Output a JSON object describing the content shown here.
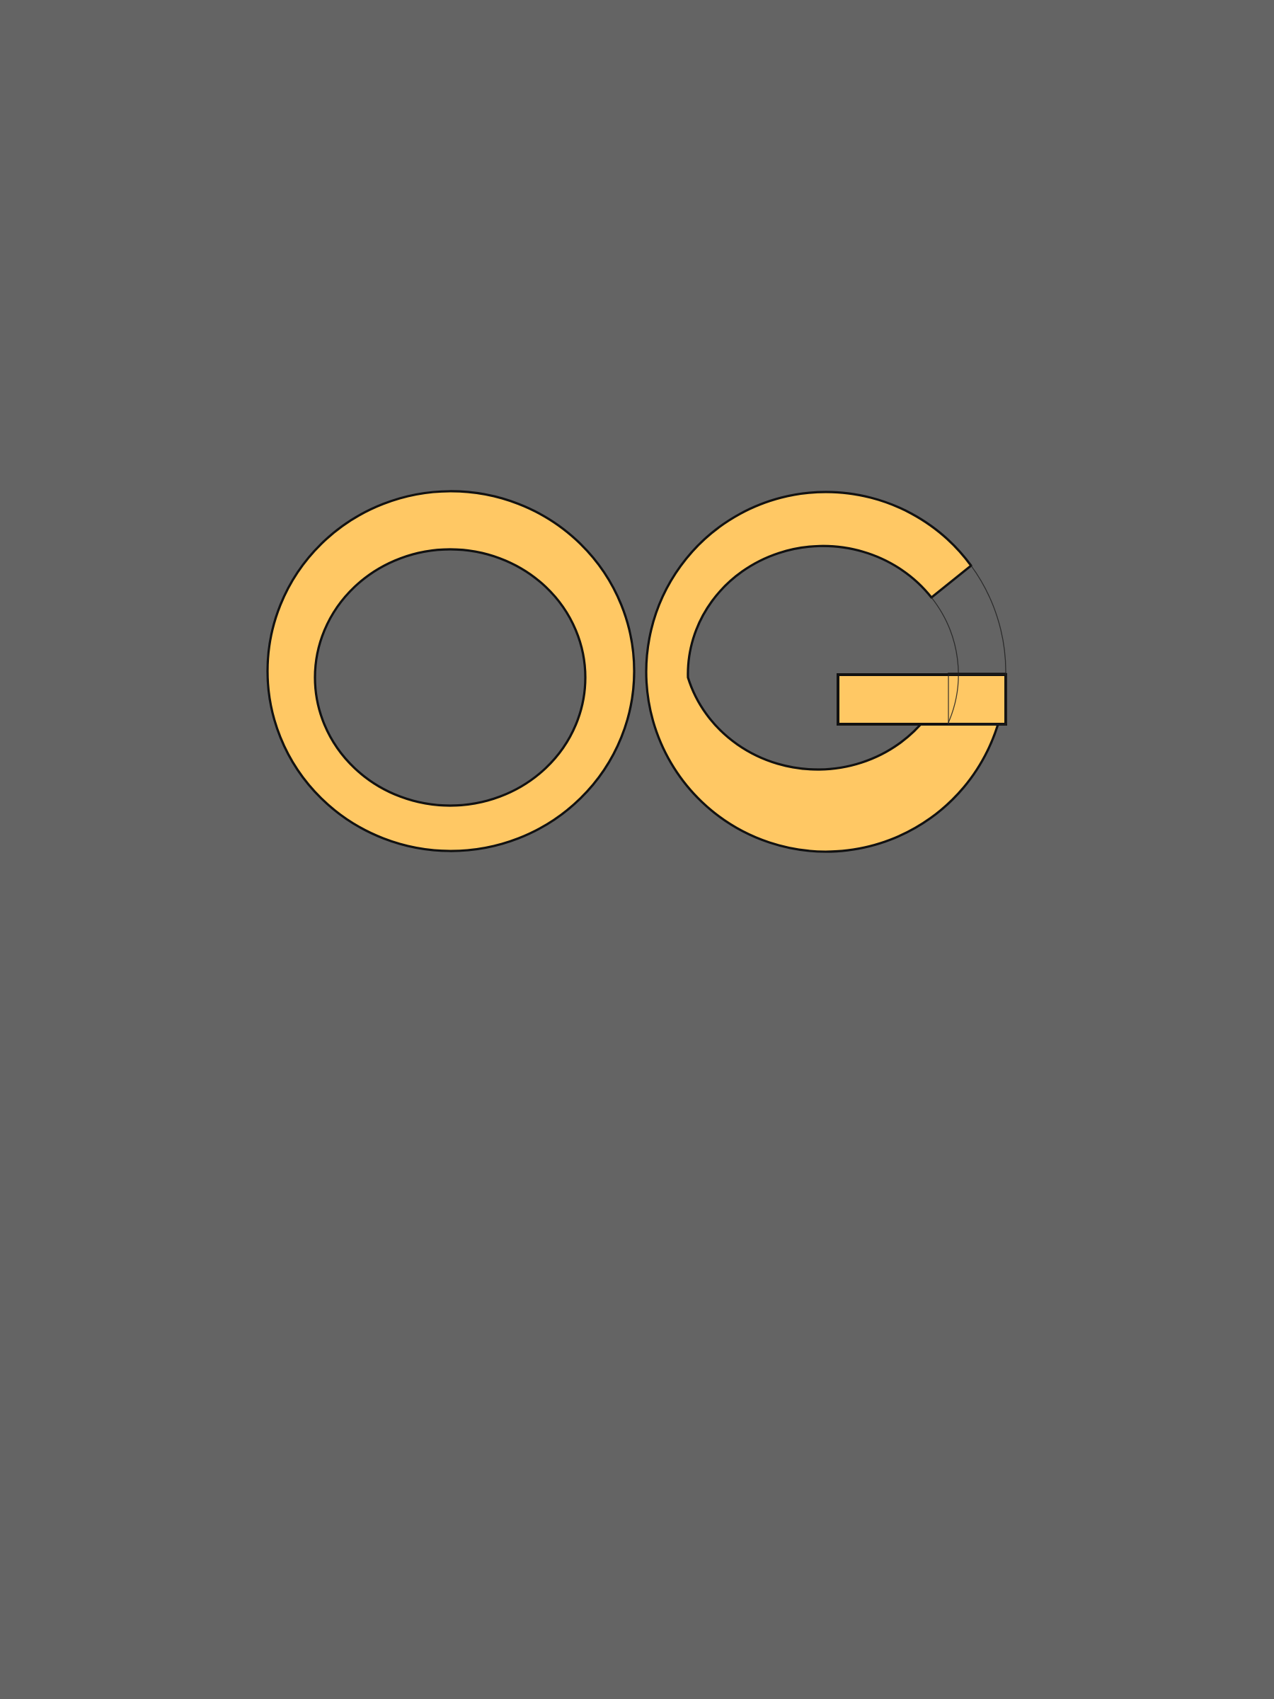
{
  "logo": {
    "letters": [
      "O",
      "G"
    ],
    "colors": {
      "background": "#646464",
      "letter_fill": "#FFC864",
      "outline": "#111111",
      "guide_lines": "#222222"
    }
  }
}
